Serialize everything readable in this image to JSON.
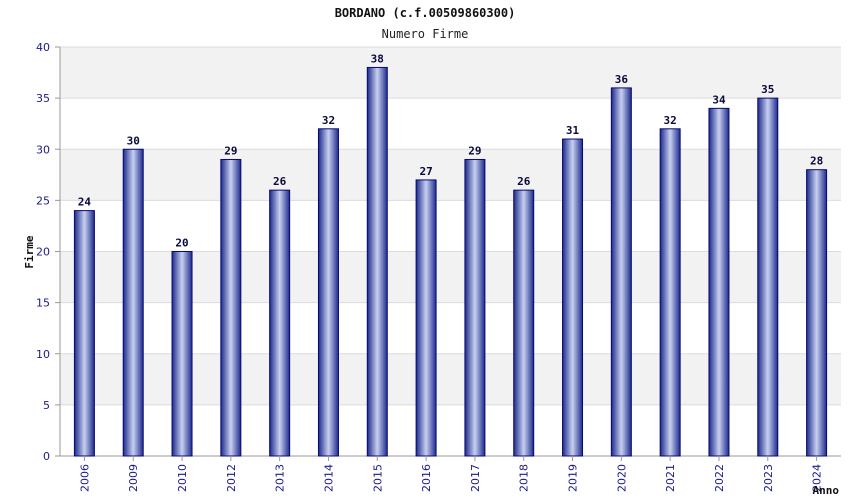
{
  "chart_data": {
    "type": "bar",
    "title": "BORDANO (c.f.00509860300)",
    "subtitle": "Numero Firme",
    "xlabel": "Anno",
    "ylabel": "Firme",
    "ylim": [
      0,
      40
    ],
    "yticks": [
      0,
      5,
      10,
      15,
      20,
      25,
      30,
      35,
      40
    ],
    "grid": true,
    "categories": [
      "2006",
      "2009",
      "2010",
      "2012",
      "2013",
      "2014",
      "2015",
      "2016",
      "2017",
      "2018",
      "2019",
      "2020",
      "2021",
      "2022",
      "2023",
      "2024"
    ],
    "values": [
      24,
      30,
      20,
      29,
      26,
      32,
      38,
      27,
      29,
      26,
      31,
      36,
      32,
      34,
      35,
      28
    ],
    "colors": {
      "bar_edge": "#0a0a6e",
      "bar_dark": "#1c2a8c",
      "bar_light": "#c8d0f0",
      "band": "#f2f2f2",
      "grid": "#dcdcdc",
      "axis": "#999999"
    }
  }
}
